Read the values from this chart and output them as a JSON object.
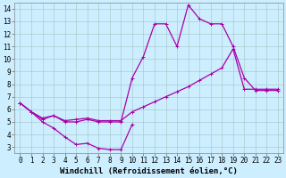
{
  "xlabel": "Windchill (Refroidissement éolien,°C)",
  "background_color": "#cceeff",
  "grid_color": "#aacccc",
  "line_color": "#aa00aa",
  "xlim": [
    -0.5,
    23.5
  ],
  "ylim": [
    2.5,
    14.5
  ],
  "xticks": [
    0,
    1,
    2,
    3,
    4,
    5,
    6,
    7,
    8,
    9,
    10,
    11,
    12,
    13,
    14,
    15,
    16,
    17,
    18,
    19,
    20,
    21,
    22,
    23
  ],
  "yticks": [
    3,
    4,
    5,
    6,
    7,
    8,
    9,
    10,
    11,
    12,
    13,
    14
  ],
  "line1_x": [
    0,
    1,
    2,
    3,
    4,
    5,
    6,
    7,
    8,
    9,
    10
  ],
  "line1_y": [
    6.5,
    5.8,
    5.0,
    4.5,
    3.8,
    3.2,
    3.3,
    2.9,
    2.8,
    2.8,
    4.8
  ],
  "line2_x": [
    0,
    1,
    2,
    3,
    4,
    5,
    6,
    7,
    8,
    9,
    10,
    11,
    12,
    13,
    14,
    15,
    16,
    17,
    18,
    19,
    20,
    21,
    22,
    23
  ],
  "line2_y": [
    6.5,
    5.8,
    5.2,
    5.5,
    5.0,
    5.0,
    5.2,
    5.0,
    5.0,
    5.0,
    8.5,
    10.2,
    12.8,
    12.8,
    11.0,
    14.3,
    13.2,
    12.8,
    12.8,
    11.0,
    8.5,
    7.5,
    7.5,
    7.5
  ],
  "line3_x": [
    0,
    1,
    2,
    3,
    4,
    5,
    6,
    7,
    8,
    9,
    10,
    11,
    12,
    13,
    14,
    15,
    16,
    17,
    18,
    19,
    20,
    21,
    22,
    23
  ],
  "line3_y": [
    6.5,
    5.8,
    5.3,
    5.5,
    5.1,
    5.2,
    5.3,
    5.1,
    5.1,
    5.1,
    5.8,
    6.2,
    6.6,
    7.0,
    7.4,
    7.8,
    8.3,
    8.8,
    9.3,
    10.8,
    7.6,
    7.6,
    7.6,
    7.6
  ],
  "marker": "+",
  "markersize": 3,
  "linewidth": 0.9,
  "tick_fontsize": 5.5,
  "label_fontsize": 6.5
}
